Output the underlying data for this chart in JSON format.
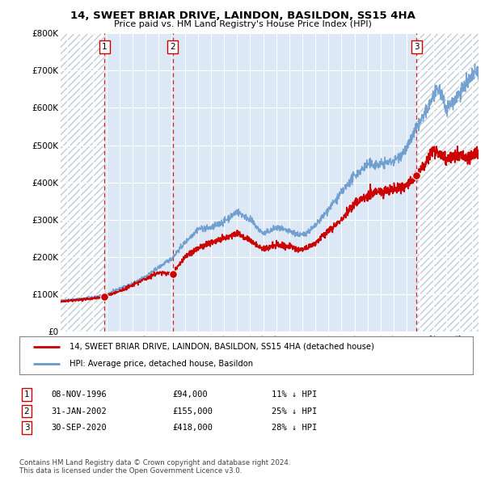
{
  "title": "14, SWEET BRIAR DRIVE, LAINDON, BASILDON, SS15 4HA",
  "subtitle": "Price paid vs. HM Land Registry's House Price Index (HPI)",
  "transactions": [
    {
      "num": 1,
      "date_label": "08-NOV-1996",
      "price": 94000,
      "hpi_diff": "11% ↓ HPI",
      "x": 1996.86
    },
    {
      "num": 2,
      "date_label": "31-JAN-2002",
      "price": 155000,
      "hpi_diff": "25% ↓ HPI",
      "x": 2002.08
    },
    {
      "num": 3,
      "date_label": "30-SEP-2020",
      "price": 418000,
      "hpi_diff": "28% ↓ HPI",
      "x": 2020.75
    }
  ],
  "legend_line1": "14, SWEET BRIAR DRIVE, LAINDON, BASILDON, SS15 4HA (detached house)",
  "legend_line2": "HPI: Average price, detached house, Basildon",
  "footer1": "Contains HM Land Registry data © Crown copyright and database right 2024.",
  "footer2": "This data is licensed under the Open Government Licence v3.0.",
  "price_line_color": "#cc0000",
  "hpi_line_color": "#6699cc",
  "background_color": "#ffffff",
  "plot_bg_color": "#dce8f5",
  "hatch_color": "#c8d8e8",
  "ylim": [
    0,
    800000
  ],
  "xlim_start": 1993.5,
  "xlim_end": 2025.5,
  "hpi_anchors": [
    [
      1993.5,
      83000
    ],
    [
      1994,
      85000
    ],
    [
      1995,
      88000
    ],
    [
      1996,
      92000
    ],
    [
      1997,
      100000
    ],
    [
      1998,
      115000
    ],
    [
      1999,
      128000
    ],
    [
      2000,
      148000
    ],
    [
      2001,
      172000
    ],
    [
      2002,
      196000
    ],
    [
      2003,
      238000
    ],
    [
      2004,
      275000
    ],
    [
      2005,
      278000
    ],
    [
      2006,
      295000
    ],
    [
      2007,
      322000
    ],
    [
      2008,
      300000
    ],
    [
      2009,
      262000
    ],
    [
      2010,
      278000
    ],
    [
      2011,
      268000
    ],
    [
      2012,
      258000
    ],
    [
      2013,
      283000
    ],
    [
      2014,
      328000
    ],
    [
      2015,
      372000
    ],
    [
      2016,
      418000
    ],
    [
      2017,
      448000
    ],
    [
      2018,
      448000
    ],
    [
      2019,
      458000
    ],
    [
      2020,
      490000
    ],
    [
      2020.5,
      530000
    ],
    [
      2021,
      560000
    ],
    [
      2021.5,
      590000
    ],
    [
      2022,
      630000
    ],
    [
      2022.5,
      650000
    ],
    [
      2023,
      600000
    ],
    [
      2023.5,
      615000
    ],
    [
      2024,
      640000
    ],
    [
      2024.5,
      660000
    ],
    [
      2025,
      685000
    ],
    [
      2025.5,
      700000
    ]
  ],
  "price_anchors": [
    [
      1993.5,
      80000
    ],
    [
      1994,
      82000
    ],
    [
      1995,
      85000
    ],
    [
      1996,
      89000
    ],
    [
      1996.86,
      94000
    ],
    [
      1997,
      96000
    ],
    [
      1998,
      108000
    ],
    [
      1999,
      124000
    ],
    [
      2000,
      142000
    ],
    [
      2001,
      158000
    ],
    [
      2002.08,
      155000
    ],
    [
      2002.5,
      175000
    ],
    [
      2003,
      200000
    ],
    [
      2004,
      222000
    ],
    [
      2005,
      240000
    ],
    [
      2006,
      248000
    ],
    [
      2007,
      265000
    ],
    [
      2008,
      245000
    ],
    [
      2009,
      220000
    ],
    [
      2010,
      232000
    ],
    [
      2011,
      228000
    ],
    [
      2012,
      218000
    ],
    [
      2013,
      238000
    ],
    [
      2014,
      268000
    ],
    [
      2015,
      302000
    ],
    [
      2016,
      342000
    ],
    [
      2017,
      368000
    ],
    [
      2018,
      375000
    ],
    [
      2019,
      382000
    ],
    [
      2020,
      395000
    ],
    [
      2020.75,
      418000
    ],
    [
      2021,
      432000
    ],
    [
      2021.5,
      455000
    ],
    [
      2022,
      492000
    ],
    [
      2022.5,
      480000
    ],
    [
      2023,
      462000
    ],
    [
      2023.5,
      468000
    ],
    [
      2024,
      475000
    ],
    [
      2024.5,
      465000
    ],
    [
      2025,
      472000
    ],
    [
      2025.5,
      478000
    ]
  ]
}
